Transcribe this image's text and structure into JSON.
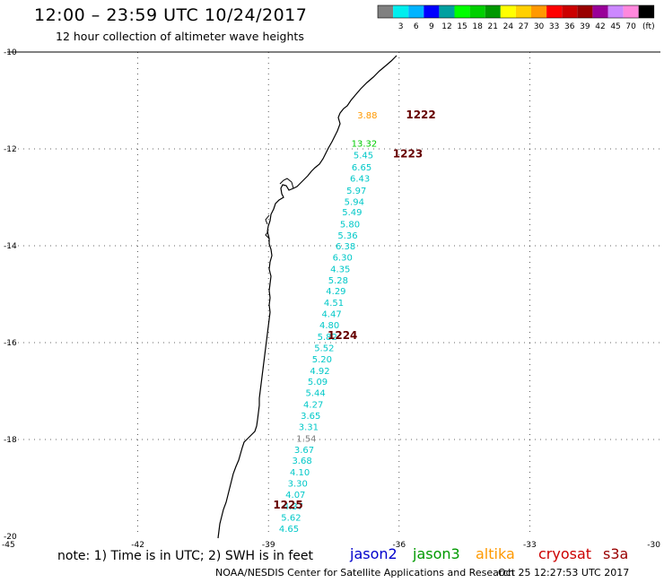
{
  "header": {
    "title": "12:00 – 23:59 UTC 10/24/2017",
    "subtitle": "12 hour collection of altimeter wave heights"
  },
  "legend": {
    "unit": "(ft)",
    "bins": [
      {
        "label": "",
        "color": "#808080"
      },
      {
        "label": "3",
        "color": "#00eeee"
      },
      {
        "label": "6",
        "color": "#00b4ff"
      },
      {
        "label": "9",
        "color": "#0000ff"
      },
      {
        "label": "12",
        "color": "#00a0a0"
      },
      {
        "label": "15",
        "color": "#00ff00"
      },
      {
        "label": "18",
        "color": "#00d000"
      },
      {
        "label": "21",
        "color": "#009800"
      },
      {
        "label": "24",
        "color": "#ffff00"
      },
      {
        "label": "27",
        "color": "#ffd000"
      },
      {
        "label": "30",
        "color": "#ff9900"
      },
      {
        "label": "33",
        "color": "#ff0000"
      },
      {
        "label": "36",
        "color": "#cc0000"
      },
      {
        "label": "39",
        "color": "#990000"
      },
      {
        "label": "42",
        "color": "#990099"
      },
      {
        "label": "45",
        "color": "#cc88ff"
      },
      {
        "label": "70",
        "color": "#ff88dd"
      },
      {
        "label": "",
        "color": "#000000"
      }
    ]
  },
  "map": {
    "lat_ticks": [
      "-10",
      "-12",
      "-14",
      "-16",
      "-18",
      "-20"
    ],
    "lon_ticks": [
      "-45",
      "-42",
      "-39",
      "-36",
      "-33",
      "-30"
    ],
    "lat_range": [
      -20,
      -10
    ],
    "lon_range": [
      -45,
      -30
    ],
    "pass_labels": [
      {
        "text": "1222",
        "lon": -35.5,
        "lat": -11.3
      },
      {
        "text": "1223",
        "lon": -35.8,
        "lat": -12.1
      },
      {
        "text": "1224",
        "lon": -37.3,
        "lat": -15.85
      },
      {
        "text": "1225",
        "lon": -38.55,
        "lat": -19.35
      }
    ],
    "points": [
      {
        "value": "3.88",
        "lon": -36.73,
        "lat": -11.3,
        "color": "#ff9900"
      },
      {
        "value": "13.32",
        "lon": -36.8,
        "lat": -11.88,
        "color": "#00cc00"
      },
      {
        "value": "5.45",
        "lon": -36.82,
        "lat": -12.12,
        "color": "#00c8c8"
      },
      {
        "value": "6.65",
        "lon": -36.86,
        "lat": -12.37,
        "color": "#00c8c8"
      },
      {
        "value": "6.43",
        "lon": -36.9,
        "lat": -12.6,
        "color": "#00c8c8"
      },
      {
        "value": "5.97",
        "lon": -36.98,
        "lat": -12.85,
        "color": "#00c8c8"
      },
      {
        "value": "5.94",
        "lon": -37.03,
        "lat": -13.08,
        "color": "#00c8c8"
      },
      {
        "value": "5.49",
        "lon": -37.08,
        "lat": -13.3,
        "color": "#00c8c8"
      },
      {
        "value": "5.80",
        "lon": -37.13,
        "lat": -13.55,
        "color": "#00c8c8"
      },
      {
        "value": "5.36",
        "lon": -37.18,
        "lat": -13.78,
        "color": "#00c8c8"
      },
      {
        "value": "6.38",
        "lon": -37.23,
        "lat": -14.0,
        "color": "#00c8c8"
      },
      {
        "value": "6.30",
        "lon": -37.3,
        "lat": -14.23,
        "color": "#00c8c8"
      },
      {
        "value": "4.35",
        "lon": -37.35,
        "lat": -14.47,
        "color": "#00c8c8"
      },
      {
        "value": "5.28",
        "lon": -37.4,
        "lat": -14.7,
        "color": "#00c8c8"
      },
      {
        "value": "4.29",
        "lon": -37.45,
        "lat": -14.93,
        "color": "#00c8c8"
      },
      {
        "value": "4.51",
        "lon": -37.5,
        "lat": -15.17,
        "color": "#00c8c8"
      },
      {
        "value": "4.47",
        "lon": -37.55,
        "lat": -15.4,
        "color": "#00c8c8"
      },
      {
        "value": "4.80",
        "lon": -37.6,
        "lat": -15.63,
        "color": "#00c8c8"
      },
      {
        "value": "5.82",
        "lon": -37.65,
        "lat": -15.87,
        "color": "#00c8c8"
      },
      {
        "value": "5.52",
        "lon": -37.72,
        "lat": -16.1,
        "color": "#00c8c8"
      },
      {
        "value": "5.20",
        "lon": -37.77,
        "lat": -16.33,
        "color": "#00c8c8"
      },
      {
        "value": "4.92",
        "lon": -37.82,
        "lat": -16.57,
        "color": "#00c8c8"
      },
      {
        "value": "5.09",
        "lon": -37.87,
        "lat": -16.8,
        "color": "#00c8c8"
      },
      {
        "value": "5.44",
        "lon": -37.92,
        "lat": -17.03,
        "color": "#00c8c8"
      },
      {
        "value": "4.27",
        "lon": -37.97,
        "lat": -17.27,
        "color": "#00c8c8"
      },
      {
        "value": "3.65",
        "lon": -38.03,
        "lat": -17.5,
        "color": "#00c8c8"
      },
      {
        "value": "3.31",
        "lon": -38.08,
        "lat": -17.73,
        "color": "#00c8c8"
      },
      {
        "value": "1.54",
        "lon": -38.13,
        "lat": -17.97,
        "color": "#808080"
      },
      {
        "value": "3.67",
        "lon": -38.18,
        "lat": -18.2,
        "color": "#00c8c8"
      },
      {
        "value": "3.68",
        "lon": -38.23,
        "lat": -18.43,
        "color": "#00c8c8"
      },
      {
        "value": "4.10",
        "lon": -38.28,
        "lat": -18.67,
        "color": "#00c8c8"
      },
      {
        "value": "3.30",
        "lon": -38.33,
        "lat": -18.9,
        "color": "#00c8c8"
      },
      {
        "value": "4.07",
        "lon": -38.38,
        "lat": -19.13,
        "color": "#00c8c8"
      },
      {
        "value": "4.37",
        "lon": -38.43,
        "lat": -19.37,
        "color": "#00c8c8"
      },
      {
        "value": "5.62",
        "lon": -38.48,
        "lat": -19.6,
        "color": "#00c8c8"
      },
      {
        "value": "4.65",
        "lon": -38.53,
        "lat": -19.83,
        "color": "#00c8c8"
      }
    ]
  },
  "footer": {
    "note": "note: 1) Time is in UTC; 2) SWH is in feet",
    "satellites": [
      {
        "name": "jason2",
        "color": "#0000cc"
      },
      {
        "name": "jason3",
        "color": "#009900"
      },
      {
        "name": "altika",
        "color": "#ff9900"
      },
      {
        "name": "cryosat",
        "color": "#cc0000"
      },
      {
        "name": "s3a",
        "color": "#990000"
      }
    ],
    "credit": "NOAA/NESDIS Center for Satellite Applications and Research",
    "timestamp": "Oct 25 12:27:53 UTC 2017"
  }
}
